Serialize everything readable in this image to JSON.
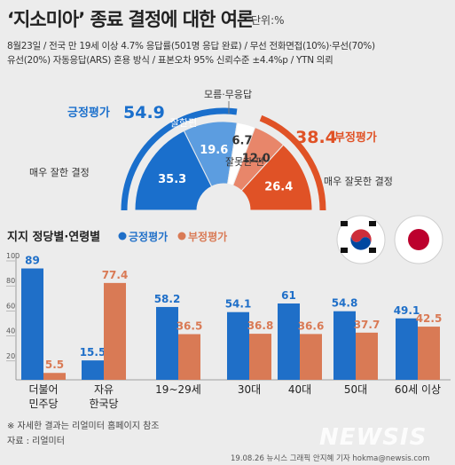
{
  "header": {
    "title": "‘지소미아’ 종료 결정에 대한 여론",
    "unit": "단위:%",
    "survey_line1": "8월23일 / 전국 만 19세 이상 4.7% 응답률(501명 응답 완료) / 무선 전화면접(10%)·무선(70%)",
    "survey_line2": "유선(20%) 자동응답(ARS) 혼용 방식 / 표본오차 95% 신뢰수준 ±4.4%p / YTN 의뢰"
  },
  "colors": {
    "positive": "#1a6fcc",
    "positive_light": "#5c9de0",
    "negative": "#e05226",
    "negative_light": "#e8866a",
    "neutral": "#ffffff",
    "bar_positive": "#1f6fc8",
    "bar_negative": "#d97a55"
  },
  "chart_data": [
    {
      "type": "pie",
      "variant": "semi-donut",
      "positive_label": "긍정평가",
      "positive_total": 54.9,
      "negative_label": "부정평가",
      "negative_total": 38.4,
      "slices": [
        {
          "label": "매우 잘한 결정",
          "value": 35.3
        },
        {
          "label": "잘한편",
          "value": 19.6
        },
        {
          "label": "모름·무응답",
          "value": 6.7
        },
        {
          "label": "잘못한 편",
          "value": 12.0
        },
        {
          "label": "매우 잘못한 결정",
          "value": 26.4
        }
      ]
    },
    {
      "type": "bar",
      "title": "지지 정당별·연령별",
      "categories": [
        "더불어\n민주당",
        "자유\n한국당",
        "19~29세",
        "30대",
        "40대",
        "50대",
        "60세 이상"
      ],
      "series": [
        {
          "name": "긍정평가",
          "values": [
            89,
            15.5,
            58.2,
            54.1,
            61,
            54.8,
            49.1
          ]
        },
        {
          "name": "부정평가",
          "values": [
            5.5,
            77.4,
            36.5,
            36.8,
            36.6,
            37.7,
            42.5
          ]
        }
      ],
      "ylim": [
        0,
        100
      ],
      "yticks": [
        20,
        40,
        60,
        80,
        100
      ],
      "legend": "top"
    }
  ],
  "footer": {
    "footnote": "※ 자세한 결과는 리얼미터 홈페이지 참조",
    "source": "자료 : 리얼미터",
    "credit": "19.08.26 뉴시스 그래픽 안지혜 기자  hokma@newsis.com",
    "watermark": "NEWSIS"
  }
}
